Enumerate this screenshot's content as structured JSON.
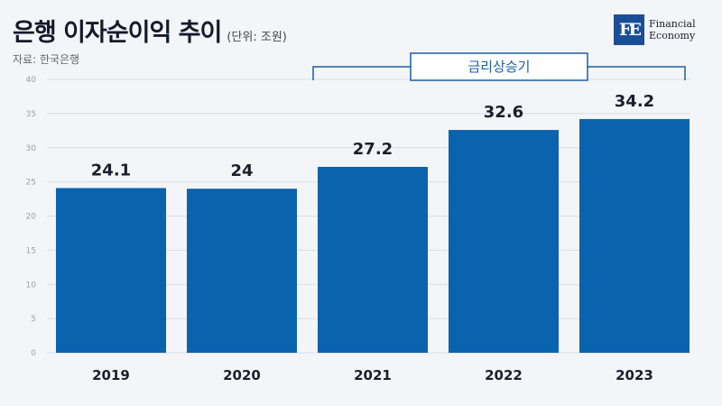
{
  "header": {
    "title": "은행 이자순이익 추이",
    "unit": "(단위: 조원)",
    "source": "자료: 한국은행"
  },
  "logo": {
    "mark": "FE",
    "line1": "Financial",
    "line2": "Economy"
  },
  "annotation": {
    "label": "금리상승기",
    "from_category": "2021",
    "to_category": "2023"
  },
  "colors": {
    "bar": "#0a63ad",
    "grid": "#d9dde4",
    "annotation": "#1a5fa8"
  },
  "chart_data": {
    "type": "bar",
    "categories": [
      "2019",
      "2020",
      "2021",
      "2022",
      "2023"
    ],
    "values": [
      24.1,
      24,
      27.2,
      32.6,
      34.2
    ],
    "value_labels": [
      "24.1",
      "24",
      "27.2",
      "32.6",
      "34.2"
    ],
    "ylim": [
      0,
      40
    ],
    "yticks": [
      "0",
      "5",
      "10",
      "15",
      "20",
      "25",
      "30",
      "35",
      "40"
    ],
    "grid": true
  }
}
